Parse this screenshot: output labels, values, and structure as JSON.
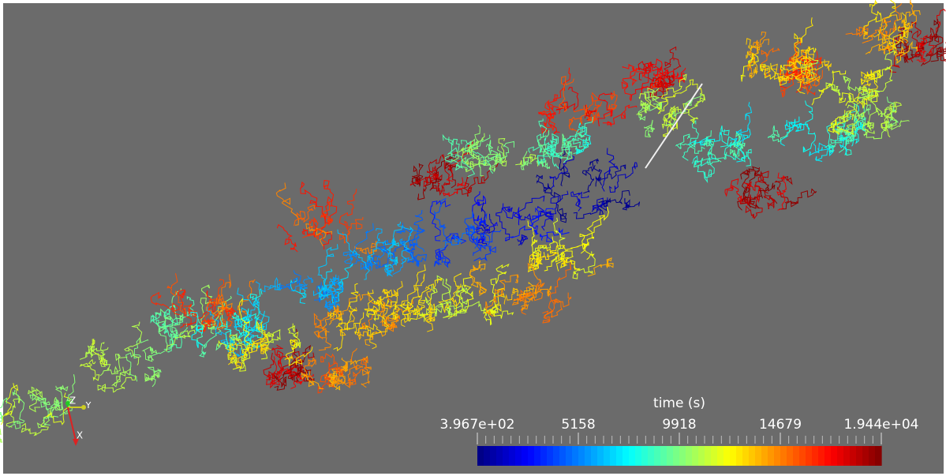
{
  "colorbar": {
    "title": "time (s)",
    "range": [
      396.7,
      19440
    ],
    "ticks": [
      {
        "value": 396.7,
        "label": "3.967e+02"
      },
      5158,
      9918,
      14679,
      {
        "value": 19440,
        "label": "1.944e+04"
      }
    ]
  },
  "axes": {
    "labels": [
      "Z",
      "Y",
      "X"
    ]
  }
}
